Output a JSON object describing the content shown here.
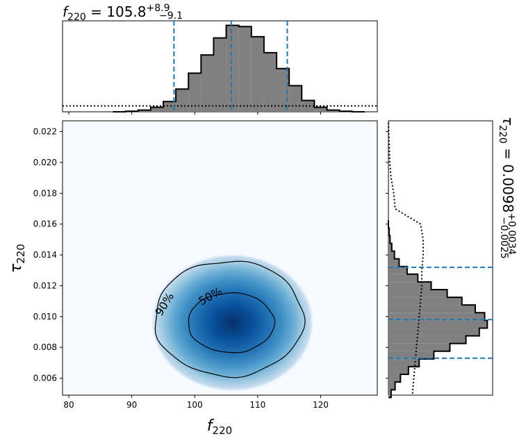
{
  "chart_data": [
    {
      "type": "heatmap",
      "panel": "joint",
      "xlabel": "f_220",
      "ylabel": "τ_220",
      "xlim": [
        79,
        129
      ],
      "ylim": [
        0.0049,
        0.0227
      ],
      "xticks": [
        80,
        90,
        100,
        110,
        120
      ],
      "yticks": [
        0.006,
        0.008,
        0.01,
        0.012,
        0.014,
        0.016,
        0.018,
        0.02,
        0.022
      ],
      "peak": {
        "x": 106,
        "y": 0.0096
      },
      "contours": [
        {
          "label": "50%"
        },
        {
          "label": "90%"
        }
      ],
      "colormap": "Blues"
    },
    {
      "type": "bar",
      "panel": "top-marginal",
      "title_main": "f",
      "title_sub": "220",
      "title_value": " = 105.8",
      "title_sup": "+8.9",
      "title_low": "−9.1",
      "median": 105.8,
      "lower": 96.7,
      "upper": 114.7,
      "prior_level": 0.052,
      "bins": [
        [
          88,
          0.0
        ],
        [
          90,
          0.005
        ],
        [
          92,
          0.015
        ],
        [
          94,
          0.04
        ],
        [
          96,
          0.09
        ],
        [
          98,
          0.2
        ],
        [
          100,
          0.34
        ],
        [
          102,
          0.5
        ],
        [
          104,
          0.65
        ],
        [
          106,
          0.76
        ],
        [
          108,
          0.75
        ],
        [
          110,
          0.66
        ],
        [
          112,
          0.52
        ],
        [
          114,
          0.38
        ],
        [
          116,
          0.23
        ],
        [
          118,
          0.1
        ],
        [
          120,
          0.04
        ],
        [
          122,
          0.015
        ],
        [
          124,
          0.005
        ],
        [
          126,
          0.0
        ]
      ]
    },
    {
      "type": "bar",
      "panel": "right-marginal",
      "title_main": "τ",
      "title_sub": "220",
      "title_value": " = 0.0098",
      "title_sup": "+0.0034",
      "title_low": "−0.0025",
      "median": 0.0098,
      "lower": 0.0073,
      "upper": 0.0132,
      "bins": [
        [
          0.005,
          0.02
        ],
        [
          0.0055,
          0.05
        ],
        [
          0.006,
          0.09
        ],
        [
          0.0065,
          0.15
        ],
        [
          0.007,
          0.23
        ],
        [
          0.0075,
          0.34
        ],
        [
          0.008,
          0.46
        ],
        [
          0.0085,
          0.58
        ],
        [
          0.009,
          0.68
        ],
        [
          0.0095,
          0.74
        ],
        [
          0.01,
          0.72
        ],
        [
          0.0105,
          0.65
        ],
        [
          0.011,
          0.55
        ],
        [
          0.0115,
          0.44
        ],
        [
          0.012,
          0.32
        ],
        [
          0.0125,
          0.22
        ],
        [
          0.013,
          0.14
        ],
        [
          0.0135,
          0.08
        ],
        [
          0.014,
          0.045
        ],
        [
          0.0145,
          0.025
        ],
        [
          0.015,
          0.012
        ],
        [
          0.0155,
          0.005
        ],
        [
          0.016,
          0.0
        ]
      ],
      "prior": [
        [
          0.005,
          0.18
        ],
        [
          0.006,
          0.19
        ],
        [
          0.007,
          0.2
        ],
        [
          0.008,
          0.21
        ],
        [
          0.009,
          0.22
        ],
        [
          0.01,
          0.23
        ],
        [
          0.011,
          0.24
        ],
        [
          0.012,
          0.25
        ],
        [
          0.013,
          0.25
        ],
        [
          0.014,
          0.26
        ],
        [
          0.015,
          0.26
        ],
        [
          0.016,
          0.24
        ],
        [
          0.017,
          0.05
        ],
        [
          0.018,
          0.04
        ],
        [
          0.019,
          0.02
        ],
        [
          0.02,
          0.01
        ],
        [
          0.0227,
          0.0
        ]
      ]
    }
  ]
}
